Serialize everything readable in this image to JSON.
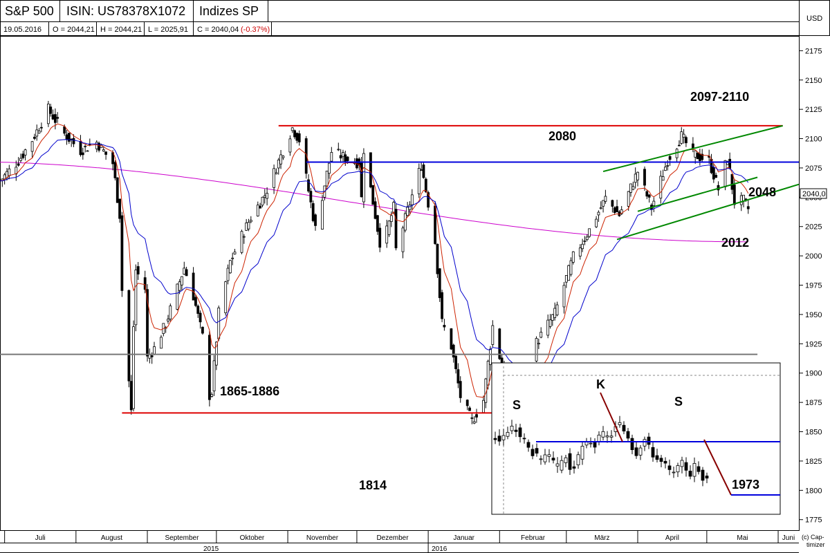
{
  "header": {
    "title": "S&P 500",
    "isin": "ISIN: US78378X1072",
    "exchange": "Indizes SP",
    "date": "19.05.2016",
    "open": "O = 2044,21",
    "high": "H = 2044,21",
    "low": "L = 2025,91",
    "close": "C = 2040,04",
    "change": "(-0.37%)",
    "currency": "USD",
    "last_price_tag": "2040,0",
    "provider": "(c) Cap-\ntimizer"
  },
  "colors": {
    "candle_up": "#ffffff",
    "candle_down": "#000000",
    "ma_fast": "#cc2200",
    "ma_mid": "#0000cc",
    "ma_slow": "#cc00cc",
    "resistance_red": "#dd0000",
    "support_blue": "#0000dd",
    "channel_green": "#008800",
    "horizontal_gray": "#777777",
    "projection": "#880000",
    "change_negative": "#cc0000"
  },
  "chart_data": {
    "type": "candlestick",
    "title": "",
    "ylabel": "USD",
    "ylim": [
      1766,
      2187
    ],
    "yticks": [
      2175,
      2150,
      2125,
      2100,
      2075,
      2050,
      2025,
      2000,
      1975,
      1950,
      1925,
      1900,
      1875,
      1850,
      1825,
      1800,
      1775
    ],
    "ytick_labels": [
      "2175",
      "2150",
      "2125",
      "2100",
      "2075",
      "2050",
      "2025",
      "2000",
      "1975",
      "1950",
      "1925",
      "1900",
      "1875",
      "1850",
      "1825",
      "1800",
      "1775"
    ],
    "x_range": [
      "2015-06-29",
      "2016-06-10"
    ],
    "month_ticks": [
      {
        "date": "2015-07-01",
        "label": "Juli"
      },
      {
        "date": "2015-08-01",
        "label": "August"
      },
      {
        "date": "2015-09-01",
        "label": "September"
      },
      {
        "date": "2015-10-01",
        "label": "Oktober"
      },
      {
        "date": "2015-11-01",
        "label": "November"
      },
      {
        "date": "2015-12-01",
        "label": "Dezember"
      },
      {
        "date": "2016-01-01",
        "label": "Januar"
      },
      {
        "date": "2016-02-01",
        "label": "Februar"
      },
      {
        "date": "2016-03-01",
        "label": "März"
      },
      {
        "date": "2016-04-01",
        "label": "April"
      },
      {
        "date": "2016-05-01",
        "label": "Mai"
      },
      {
        "date": "2016-06-01",
        "label": "Juni"
      }
    ],
    "year_ticks": [
      {
        "date": "2015-01-01",
        "label": "2015"
      },
      {
        "date": "2016-01-01",
        "label": "2016"
      }
    ],
    "closes": [
      {
        "date": "2015-06-29",
        "value": 2064
      },
      {
        "date": "2015-07-07",
        "value": 2081
      },
      {
        "date": "2015-07-13",
        "value": 2099
      },
      {
        "date": "2015-07-20",
        "value": 2125
      },
      {
        "date": "2015-07-27",
        "value": 2104
      },
      {
        "date": "2015-08-03",
        "value": 2090
      },
      {
        "date": "2015-08-10",
        "value": 2097
      },
      {
        "date": "2015-08-17",
        "value": 2079
      },
      {
        "date": "2015-08-20",
        "value": 2035
      },
      {
        "date": "2015-08-21",
        "value": 1971
      },
      {
        "date": "2015-08-24",
        "value": 1893
      },
      {
        "date": "2015-08-25",
        "value": 1867
      },
      {
        "date": "2015-08-26",
        "value": 1940
      },
      {
        "date": "2015-08-27",
        "value": 1988
      },
      {
        "date": "2015-08-31",
        "value": 1972
      },
      {
        "date": "2015-09-01",
        "value": 1913
      },
      {
        "date": "2015-09-04",
        "value": 1921
      },
      {
        "date": "2015-09-09",
        "value": 1942
      },
      {
        "date": "2015-09-17",
        "value": 1990
      },
      {
        "date": "2015-09-21",
        "value": 1966
      },
      {
        "date": "2015-09-25",
        "value": 1931
      },
      {
        "date": "2015-09-28",
        "value": 1881
      },
      {
        "date": "2015-09-29",
        "value": 1884
      },
      {
        "date": "2015-10-02",
        "value": 1951
      },
      {
        "date": "2015-10-07",
        "value": 1995
      },
      {
        "date": "2015-10-12",
        "value": 2017
      },
      {
        "date": "2015-10-16",
        "value": 2033
      },
      {
        "date": "2015-10-22",
        "value": 2052
      },
      {
        "date": "2015-10-26",
        "value": 2071
      },
      {
        "date": "2015-11-03",
        "value": 2109
      },
      {
        "date": "2015-11-06",
        "value": 2099
      },
      {
        "date": "2015-11-13",
        "value": 2023
      },
      {
        "date": "2015-11-20",
        "value": 2089
      },
      {
        "date": "2015-11-30",
        "value": 2080
      },
      {
        "date": "2015-12-02",
        "value": 2080
      },
      {
        "date": "2015-12-03",
        "value": 2049
      },
      {
        "date": "2015-12-04",
        "value": 2091
      },
      {
        "date": "2015-12-11",
        "value": 2012
      },
      {
        "date": "2015-12-14",
        "value": 2021
      },
      {
        "date": "2015-12-17",
        "value": 2041
      },
      {
        "date": "2015-12-18",
        "value": 2005
      },
      {
        "date": "2015-12-29",
        "value": 2078
      },
      {
        "date": "2016-01-04",
        "value": 2012
      },
      {
        "date": "2016-01-07",
        "value": 1943
      },
      {
        "date": "2016-01-11",
        "value": 1923
      },
      {
        "date": "2016-01-15",
        "value": 1880
      },
      {
        "date": "2016-01-20",
        "value": 1859
      },
      {
        "date": "2016-01-25",
        "value": 1877
      },
      {
        "date": "2016-01-29",
        "value": 1940
      },
      {
        "date": "2016-02-05",
        "value": 1880
      },
      {
        "date": "2016-02-11",
        "value": 1829
      },
      {
        "date": "2016-02-17",
        "value": 1926
      },
      {
        "date": "2016-02-25",
        "value": 1951
      },
      {
        "date": "2016-03-04",
        "value": 1999
      },
      {
        "date": "2016-03-11",
        "value": 2022
      },
      {
        "date": "2016-03-18",
        "value": 2049
      },
      {
        "date": "2016-03-24",
        "value": 2035
      },
      {
        "date": "2016-04-01",
        "value": 2072
      },
      {
        "date": "2016-04-07",
        "value": 2041
      },
      {
        "date": "2016-04-14",
        "value": 2082
      },
      {
        "date": "2016-04-20",
        "value": 2102
      },
      {
        "date": "2016-04-25",
        "value": 2087
      },
      {
        "date": "2016-05-02",
        "value": 2081
      },
      {
        "date": "2016-05-06",
        "value": 2057
      },
      {
        "date": "2016-05-10",
        "value": 2084
      },
      {
        "date": "2016-05-13",
        "value": 2046
      },
      {
        "date": "2016-05-17",
        "value": 2047
      },
      {
        "date": "2016-05-19",
        "value": 2040
      }
    ],
    "annotations": [
      {
        "label": "2097-2110",
        "level": 2111
      },
      {
        "label": "2080",
        "level": 2080
      },
      {
        "label": "2048",
        "level": 2048
      },
      {
        "label": "2012",
        "level": 2012
      },
      {
        "label": "1865-1886",
        "level": 1866
      },
      {
        "label": "1814",
        "level": 1814
      }
    ],
    "horizontal_lines": [
      {
        "id": "resistance-2097-2110",
        "level": 2111,
        "from": "2015-10-28",
        "to": "2016-06-03"
      },
      {
        "id": "support-2080",
        "level": 2080,
        "from": "2015-11-09",
        "to": "2016-06-10"
      },
      {
        "id": "support-1865-1886",
        "level": 1866,
        "from": "2015-08-21",
        "to": "2016-02-12"
      },
      {
        "id": "gray-line",
        "level": 1916,
        "from": "2015-06-29",
        "to": "2016-05-23"
      }
    ],
    "trend_lines": [
      {
        "from": {
          "date": "2016-03-17",
          "value": 2072
        },
        "to": {
          "date": "2016-06-03",
          "value": 2111
        }
      },
      {
        "from": {
          "date": "2016-03-23",
          "value": 2014
        },
        "to": {
          "date": "2016-06-10",
          "value": 2061
        }
      },
      {
        "from": {
          "date": "2016-04-01",
          "value": 2038
        },
        "to": {
          "date": "2016-05-23",
          "value": 2067
        }
      }
    ],
    "inset": {
      "labels": [
        "S",
        "K",
        "S",
        "1973"
      ],
      "neckline_label": "",
      "target_label": "1973"
    }
  }
}
